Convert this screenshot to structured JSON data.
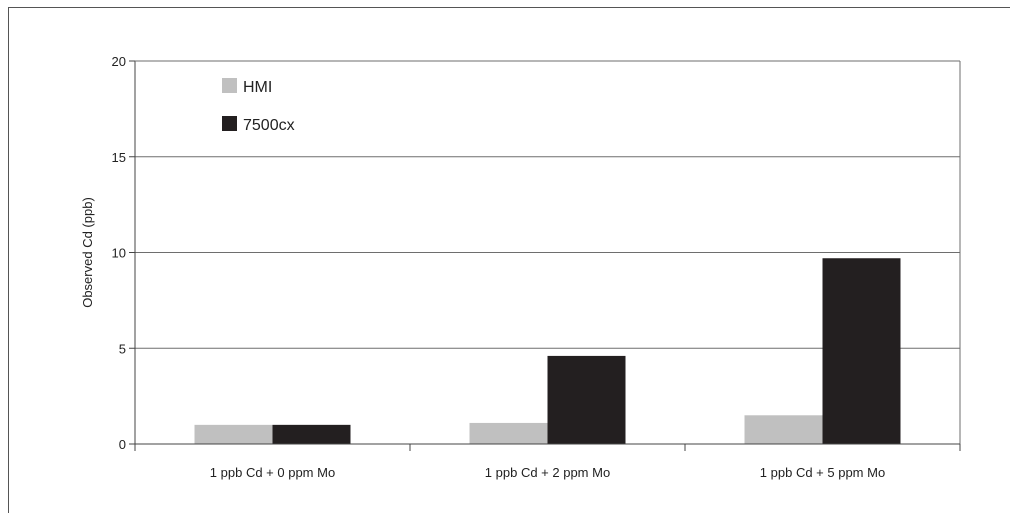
{
  "chart_data": {
    "type": "bar",
    "title": "",
    "xlabel": "",
    "ylabel": "Observed Cd (ppb)",
    "ylim": [
      0,
      20
    ],
    "yticks": [
      0,
      5,
      10,
      15,
      20
    ],
    "grid": true,
    "legend_position": "top-left",
    "categories": [
      "1 ppb Cd + 0 ppm Mo",
      "1 ppb Cd + 2 ppm Mo",
      "1 ppb Cd + 5 ppm Mo"
    ],
    "series": [
      {
        "name": "HMI",
        "color": "#c0c0c0",
        "values": [
          1.0,
          1.1,
          1.5
        ]
      },
      {
        "name": "7500cx",
        "color": "#231f20",
        "values": [
          1.0,
          4.6,
          9.7
        ]
      }
    ]
  }
}
